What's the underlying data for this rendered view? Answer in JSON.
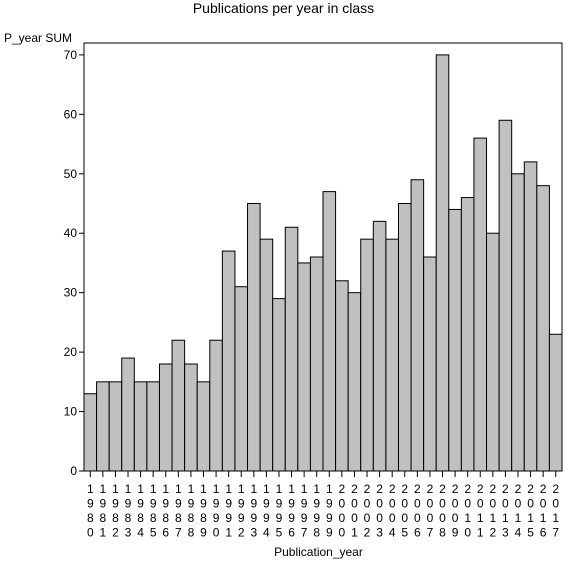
{
  "chart_data": {
    "type": "bar",
    "title": "Publications per year in class",
    "ylabel": "P_year SUM",
    "xlabel": "Publication_year",
    "ylim": [
      0,
      72
    ],
    "yticks": [
      0,
      10,
      20,
      30,
      40,
      50,
      60,
      70
    ],
    "grid": false,
    "bar_color": "#c0c0c0",
    "categories": [
      "1980",
      "1981",
      "1982",
      "1983",
      "1984",
      "1985",
      "1986",
      "1987",
      "1988",
      "1989",
      "1990",
      "1991",
      "1992",
      "1993",
      "1994",
      "1995",
      "1996",
      "1997",
      "1998",
      "1999",
      "2000",
      "2001",
      "2002",
      "2003",
      "2004",
      "2005",
      "2006",
      "2007",
      "2008",
      "2009",
      "2010",
      "2011",
      "2012",
      "2013",
      "2014",
      "2015",
      "2016",
      "2017"
    ],
    "values": [
      13,
      15,
      15,
      19,
      15,
      15,
      18,
      22,
      18,
      15,
      22,
      37,
      31,
      45,
      39,
      29,
      41,
      35,
      36,
      47,
      32,
      30,
      39,
      42,
      39,
      45,
      49,
      36,
      70,
      44,
      46,
      56,
      40,
      59,
      50,
      52,
      48,
      23
    ]
  }
}
